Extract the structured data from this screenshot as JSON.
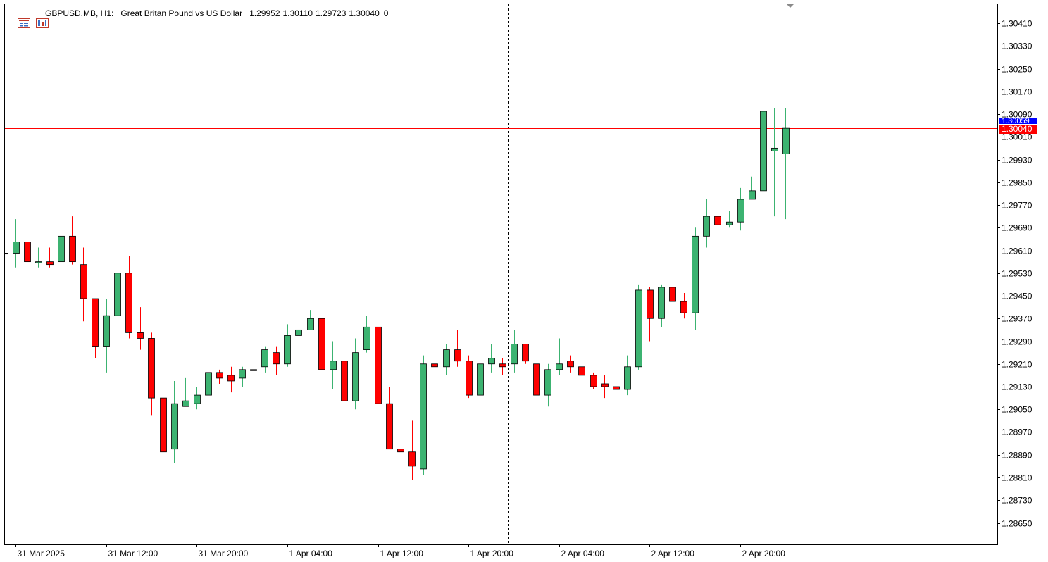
{
  "header": {
    "symbol": "GBPUSD.MB, H1:",
    "description": "Great Britan Pound vs US Dollar",
    "open": "1.29952",
    "high": "1.30110",
    "low": "1.29723",
    "close": "1.30040",
    "volume": "0",
    "icons": [
      "menu-icon",
      "one-click-trading-icon"
    ]
  },
  "colors": {
    "bull": "#3cb371",
    "bear": "#ff0000",
    "outline": "#000000",
    "bid_line": "#ff0000",
    "ask_line": "#000080",
    "bid_label": "#ff0000",
    "ask_label": "#0000ff",
    "grid_separator": "#000000"
  },
  "price_labels": {
    "bid": "1.30040",
    "ask": "1.30059"
  },
  "chart_data": {
    "type": "candlestick",
    "timeframe": "H1",
    "ylim": [
      1.2861,
      1.3048
    ],
    "y_ticks": [
      "1.30410",
      "1.30330",
      "1.30250",
      "1.30170",
      "1.30090",
      "1.30010",
      "1.29930",
      "1.29850",
      "1.29770",
      "1.29690",
      "1.29610",
      "1.29530",
      "1.29450",
      "1.29370",
      "1.29290",
      "1.29210",
      "1.29130",
      "1.29050",
      "1.28970",
      "1.28890",
      "1.28810",
      "1.28730",
      "1.28650"
    ],
    "x_labels": [
      {
        "index": 0,
        "label": "31 Mar 2025"
      },
      {
        "index": 8,
        "label": "31 Mar 12:00"
      },
      {
        "index": 16,
        "label": "31 Mar 20:00"
      },
      {
        "index": 24,
        "label": "1 Apr 04:00"
      },
      {
        "index": 32,
        "label": "1 Apr 12:00"
      },
      {
        "index": 40,
        "label": "1 Apr 20:00"
      },
      {
        "index": 48,
        "label": "2 Apr 04:00"
      },
      {
        "index": 56,
        "label": "2 Apr 12:00"
      },
      {
        "index": 64,
        "label": "2 Apr 20:00"
      }
    ],
    "day_separators": [
      19.5,
      43.5,
      67.5
    ],
    "bid": 1.3004,
    "ask": 1.30059,
    "candles": [
      {
        "o": 1.296,
        "h": 1.2972,
        "l": 1.2955,
        "c": 1.2964
      },
      {
        "o": 1.2964,
        "h": 1.2965,
        "l": 1.2957,
        "c": 1.2957
      },
      {
        "o": 1.2957,
        "h": 1.2962,
        "l": 1.2955,
        "c": 1.2957
      },
      {
        "o": 1.2957,
        "h": 1.2962,
        "l": 1.2955,
        "c": 1.2956
      },
      {
        "o": 1.2957,
        "h": 1.2967,
        "l": 1.2949,
        "c": 1.2966
      },
      {
        "o": 1.2966,
        "h": 1.2973,
        "l": 1.2956,
        "c": 1.2957
      },
      {
        "o": 1.2956,
        "h": 1.2962,
        "l": 1.2936,
        "c": 1.2944
      },
      {
        "o": 1.2944,
        "h": 1.2944,
        "l": 1.2923,
        "c": 1.2927
      },
      {
        "o": 1.2927,
        "h": 1.2944,
        "l": 1.2918,
        "c": 1.2938
      },
      {
        "o": 1.2938,
        "h": 1.296,
        "l": 1.2936,
        "c": 1.2953
      },
      {
        "o": 1.2953,
        "h": 1.2959,
        "l": 1.293,
        "c": 1.2932
      },
      {
        "o": 1.2932,
        "h": 1.2941,
        "l": 1.2926,
        "c": 1.293
      },
      {
        "o": 1.293,
        "h": 1.2932,
        "l": 1.2903,
        "c": 1.2909
      },
      {
        "o": 1.2909,
        "h": 1.2921,
        "l": 1.2889,
        "c": 1.289
      },
      {
        "o": 1.2891,
        "h": 1.2915,
        "l": 1.2886,
        "c": 1.2907
      },
      {
        "o": 1.2906,
        "h": 1.2916,
        "l": 1.2906,
        "c": 1.2908
      },
      {
        "o": 1.2907,
        "h": 1.2913,
        "l": 1.2905,
        "c": 1.291
      },
      {
        "o": 1.291,
        "h": 1.2924,
        "l": 1.2908,
        "c": 1.2918
      },
      {
        "o": 1.2918,
        "h": 1.2919,
        "l": 1.2914,
        "c": 1.2916
      },
      {
        "o": 1.2917,
        "h": 1.292,
        "l": 1.2911,
        "c": 1.2915
      },
      {
        "o": 1.2916,
        "h": 1.292,
        "l": 1.2913,
        "c": 1.2919
      },
      {
        "o": 1.2919,
        "h": 1.2922,
        "l": 1.2915,
        "c": 1.2919
      },
      {
        "o": 1.292,
        "h": 1.2927,
        "l": 1.2918,
        "c": 1.2926
      },
      {
        "o": 1.2925,
        "h": 1.2927,
        "l": 1.2917,
        "c": 1.2921
      },
      {
        "o": 1.2921,
        "h": 1.2935,
        "l": 1.292,
        "c": 1.2931
      },
      {
        "o": 1.2931,
        "h": 1.2936,
        "l": 1.2929,
        "c": 1.2933
      },
      {
        "o": 1.2933,
        "h": 1.294,
        "l": 1.2933,
        "c": 1.2937
      },
      {
        "o": 1.2937,
        "h": 1.2937,
        "l": 1.2919,
        "c": 1.2919
      },
      {
        "o": 1.2919,
        "h": 1.2929,
        "l": 1.2912,
        "c": 1.2922
      },
      {
        "o": 1.2922,
        "h": 1.2922,
        "l": 1.2902,
        "c": 1.2908
      },
      {
        "o": 1.2908,
        "h": 1.293,
        "l": 1.2905,
        "c": 1.2925
      },
      {
        "o": 1.2926,
        "h": 1.2938,
        "l": 1.2925,
        "c": 1.2934
      },
      {
        "o": 1.2934,
        "h": 1.2934,
        "l": 1.2907,
        "c": 1.2907
      },
      {
        "o": 1.2907,
        "h": 1.2913,
        "l": 1.2891,
        "c": 1.2891
      },
      {
        "o": 1.2891,
        "h": 1.2901,
        "l": 1.2886,
        "c": 1.289
      },
      {
        "o": 1.289,
        "h": 1.2901,
        "l": 1.288,
        "c": 1.2885
      },
      {
        "o": 1.2884,
        "h": 1.2924,
        "l": 1.2882,
        "c": 1.2921
      },
      {
        "o": 1.2921,
        "h": 1.2929,
        "l": 1.2918,
        "c": 1.292
      },
      {
        "o": 1.292,
        "h": 1.2928,
        "l": 1.2917,
        "c": 1.2926
      },
      {
        "o": 1.2926,
        "h": 1.2933,
        "l": 1.292,
        "c": 1.2922
      },
      {
        "o": 1.2922,
        "h": 1.2924,
        "l": 1.2909,
        "c": 1.291
      },
      {
        "o": 1.291,
        "h": 1.2922,
        "l": 1.2908,
        "c": 1.2921
      },
      {
        "o": 1.2921,
        "h": 1.2928,
        "l": 1.2918,
        "c": 1.2923
      },
      {
        "o": 1.2921,
        "h": 1.2923,
        "l": 1.2917,
        "c": 1.292
      },
      {
        "o": 1.2921,
        "h": 1.2933,
        "l": 1.2918,
        "c": 1.2928
      },
      {
        "o": 1.2928,
        "h": 1.2928,
        "l": 1.2921,
        "c": 1.2922
      },
      {
        "o": 1.2921,
        "h": 1.2921,
        "l": 1.291,
        "c": 1.291
      },
      {
        "o": 1.291,
        "h": 1.2921,
        "l": 1.2906,
        "c": 1.2919
      },
      {
        "o": 1.2919,
        "h": 1.293,
        "l": 1.2917,
        "c": 1.2921
      },
      {
        "o": 1.2922,
        "h": 1.2924,
        "l": 1.2918,
        "c": 1.292
      },
      {
        "o": 1.292,
        "h": 1.2921,
        "l": 1.2916,
        "c": 1.2917
      },
      {
        "o": 1.2917,
        "h": 1.2918,
        "l": 1.2912,
        "c": 1.2913
      },
      {
        "o": 1.2914,
        "h": 1.2917,
        "l": 1.2909,
        "c": 1.2913
      },
      {
        "o": 1.2913,
        "h": 1.2914,
        "l": 1.29,
        "c": 1.2912
      },
      {
        "o": 1.2912,
        "h": 1.2924,
        "l": 1.291,
        "c": 1.292
      },
      {
        "o": 1.292,
        "h": 1.2949,
        "l": 1.2919,
        "c": 1.2947
      },
      {
        "o": 1.2947,
        "h": 1.2948,
        "l": 1.2929,
        "c": 1.2937
      },
      {
        "o": 1.2937,
        "h": 1.2949,
        "l": 1.2934,
        "c": 1.2948
      },
      {
        "o": 1.2948,
        "h": 1.295,
        "l": 1.2939,
        "c": 1.2943
      },
      {
        "o": 1.2943,
        "h": 1.2946,
        "l": 1.2937,
        "c": 1.2939
      },
      {
        "o": 1.2939,
        "h": 1.2969,
        "l": 1.2933,
        "c": 1.2966
      },
      {
        "o": 1.2966,
        "h": 1.2979,
        "l": 1.2962,
        "c": 1.2973
      },
      {
        "o": 1.2973,
        "h": 1.2974,
        "l": 1.2963,
        "c": 1.297
      },
      {
        "o": 1.297,
        "h": 1.2975,
        "l": 1.2969,
        "c": 1.2971
      },
      {
        "o": 1.2971,
        "h": 1.2983,
        "l": 1.2968,
        "c": 1.2979
      },
      {
        "o": 1.2979,
        "h": 1.2987,
        "l": 1.2979,
        "c": 1.2982
      },
      {
        "o": 1.2982,
        "h": 1.3025,
        "l": 1.2954,
        "c": 1.301
      },
      {
        "o": 1.2996,
        "h": 1.3011,
        "l": 1.2973,
        "c": 1.2997
      },
      {
        "o": 1.2995,
        "h": 1.3011,
        "l": 1.2972,
        "c": 1.3004
      }
    ]
  }
}
